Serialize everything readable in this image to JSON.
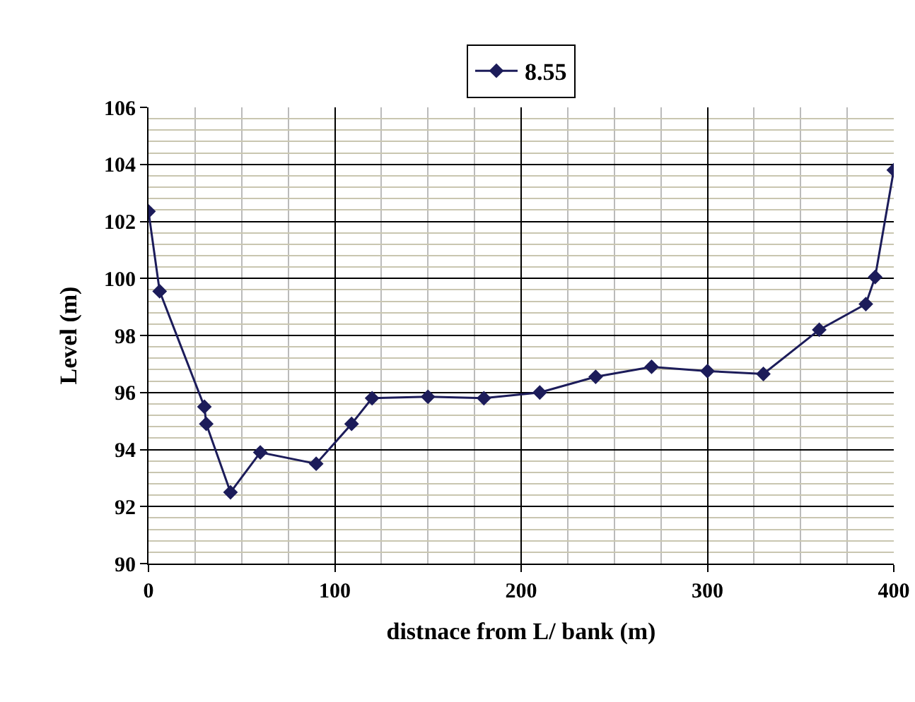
{
  "chart_data": {
    "type": "line",
    "xlabel": "distnace from L/ bank (m)",
    "ylabel": "Level (m)",
    "x": [
      0,
      6,
      30,
      31,
      44,
      60,
      90,
      109,
      120,
      150,
      180,
      210,
      240,
      270,
      300,
      330,
      360,
      385,
      390,
      400
    ],
    "series": [
      {
        "name": "8.55",
        "color": "#1c1c5a",
        "values": [
          102.35,
          99.55,
          95.5,
          94.9,
          92.5,
          93.9,
          93.5,
          94.9,
          95.8,
          95.85,
          95.8,
          96.0,
          96.55,
          96.9,
          96.75,
          96.65,
          98.2,
          99.1,
          100.05,
          103.8
        ]
      }
    ],
    "xlim": [
      0,
      400
    ],
    "xticks": [
      0,
      100,
      200,
      300,
      400
    ],
    "ylim": [
      90,
      106
    ],
    "yticks": [
      90,
      92,
      94,
      96,
      98,
      100,
      102,
      104,
      106
    ],
    "grid": true,
    "legend": "top",
    "marker": "diamond",
    "line_style": "solid"
  }
}
